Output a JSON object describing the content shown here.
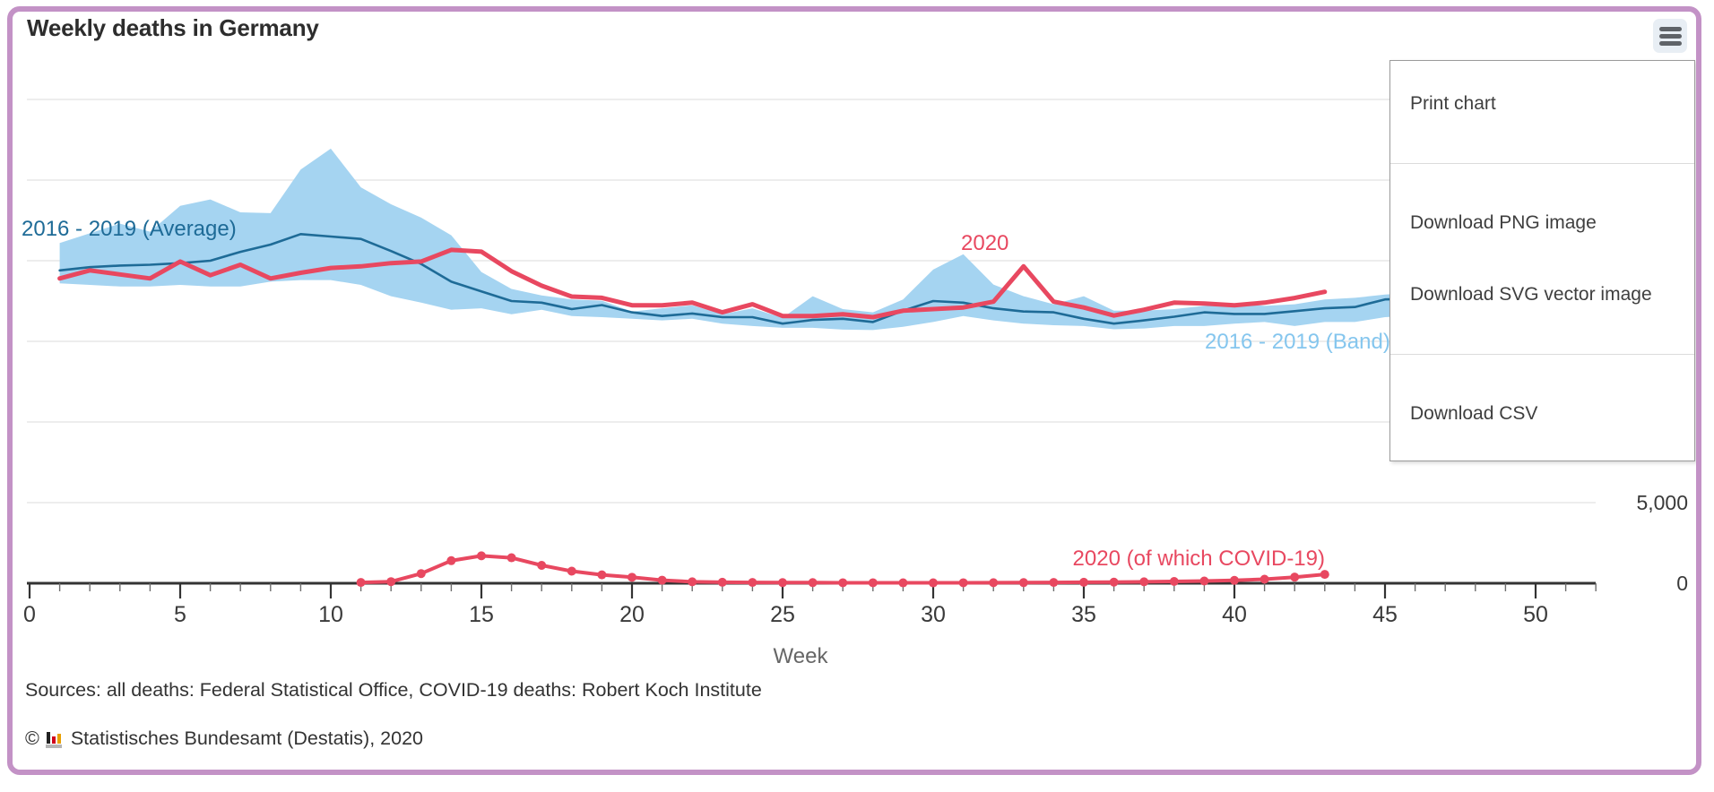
{
  "window": {
    "title": "Weekly deaths in Germany"
  },
  "menu": {
    "button_icon": "hamburger-icon",
    "sections": [
      [
        {
          "id": "print-chart",
          "label": "Print chart"
        }
      ],
      [
        {
          "id": "download-png",
          "label": "Download PNG image"
        },
        {
          "id": "download-svg",
          "label": "Download SVG vector image"
        }
      ],
      [
        {
          "id": "download-csv",
          "label": "Download CSV"
        }
      ]
    ]
  },
  "footer": {
    "sources": "Sources: all deaths: Federal Statistical Office, COVID-19 deaths: Robert Koch Institute",
    "copyright_symbol": "©",
    "credits": "Statistisches Bundesamt (Destatis), 2020",
    "credits_icon": "destatis-bar-chart-icon"
  },
  "colors": {
    "border": "#c392c6",
    "band": "#a5d4f1",
    "average_line": "#1e6b97",
    "line_2020": "#e84860",
    "gridline": "#e7e7e7",
    "axis": "#333333",
    "axis_label": "#3a3a3a",
    "axis_title": "#666666"
  },
  "chart_data": {
    "type": "line",
    "title": "Weekly deaths in Germany",
    "xlabel": "Week",
    "ylabel": "",
    "xlim": [
      0,
      52
    ],
    "ylim": [
      0,
      30000
    ],
    "grid": true,
    "x_ticks_major": [
      0,
      5,
      10,
      15,
      20,
      25,
      30,
      35,
      40,
      45,
      50
    ],
    "x_minor_tick_every": 1,
    "x_minor_ticks_until": 52,
    "y_gridline_step": 5000,
    "y_axis_side": "right",
    "y_labels_visible": [
      "5,000",
      "0"
    ],
    "series": [
      {
        "name": "2016 - 2019 (Band)",
        "type": "arearange",
        "color": "#a5d4f1",
        "start_week": 1,
        "high": [
          21100,
          21700,
          22300,
          21800,
          23400,
          23800,
          23000,
          22950,
          25650,
          26950,
          24550,
          23500,
          22670,
          21580,
          19300,
          18250,
          17850,
          17600,
          17520,
          16850,
          17050,
          17240,
          16680,
          17050,
          16460,
          17800,
          17000,
          16800,
          17600,
          19450,
          20400,
          18520,
          17800,
          17300,
          17800,
          16900,
          16900,
          17000,
          17200,
          17350,
          17200,
          17300,
          17600,
          17700,
          17900,
          18000
        ],
        "low": [
          18600,
          18500,
          18400,
          18400,
          18500,
          18400,
          18400,
          18700,
          18800,
          18800,
          18500,
          17800,
          17400,
          16960,
          17050,
          16680,
          16960,
          16570,
          16500,
          16400,
          16300,
          16400,
          16100,
          15950,
          15840,
          15840,
          15730,
          15700,
          15900,
          16200,
          16570,
          16300,
          16100,
          16000,
          15950,
          15750,
          15800,
          15950,
          15950,
          16100,
          16200,
          15950,
          16200,
          16200,
          16500,
          16600
        ]
      },
      {
        "name": "2016 - 2019 (Average)",
        "type": "line",
        "color": "#1e6b97",
        "start_week": 1,
        "values": [
          19400,
          19600,
          19700,
          19750,
          19850,
          20000,
          20550,
          21000,
          21650,
          21500,
          21350,
          20600,
          19800,
          18700,
          18100,
          17500,
          17400,
          17000,
          17250,
          16800,
          16570,
          16730,
          16500,
          16500,
          16100,
          16330,
          16400,
          16200,
          16900,
          17500,
          17400,
          17050,
          16850,
          16800,
          16400,
          16100,
          16300,
          16530,
          16800,
          16700,
          16700,
          16870,
          17050,
          17130,
          17600,
          17650
        ]
      },
      {
        "name": "2020",
        "type": "line",
        "color": "#e84860",
        "start_week": 1,
        "values": [
          18900,
          19400,
          19150,
          18900,
          19950,
          19100,
          19750,
          18900,
          19250,
          19550,
          19650,
          19850,
          19950,
          20670,
          20560,
          19350,
          18450,
          17780,
          17700,
          17240,
          17240,
          17400,
          16800,
          17300,
          16570,
          16570,
          16680,
          16500,
          16900,
          17000,
          17100,
          17460,
          19650,
          17460,
          17100,
          16600,
          16960,
          17400,
          17350,
          17240,
          17400,
          17690,
          18070
        ]
      },
      {
        "name": "2020 (of which COVID-19)",
        "type": "line-markers",
        "color": "#e84860",
        "start_week": 11,
        "values": [
          50,
          100,
          600,
          1400,
          1700,
          1580,
          1110,
          750,
          520,
          370,
          190,
          90,
          60,
          50,
          40,
          40,
          30,
          30,
          25,
          25,
          30,
          35,
          40,
          50,
          60,
          70,
          90,
          110,
          140,
          180,
          250,
          380,
          550
        ]
      }
    ]
  }
}
